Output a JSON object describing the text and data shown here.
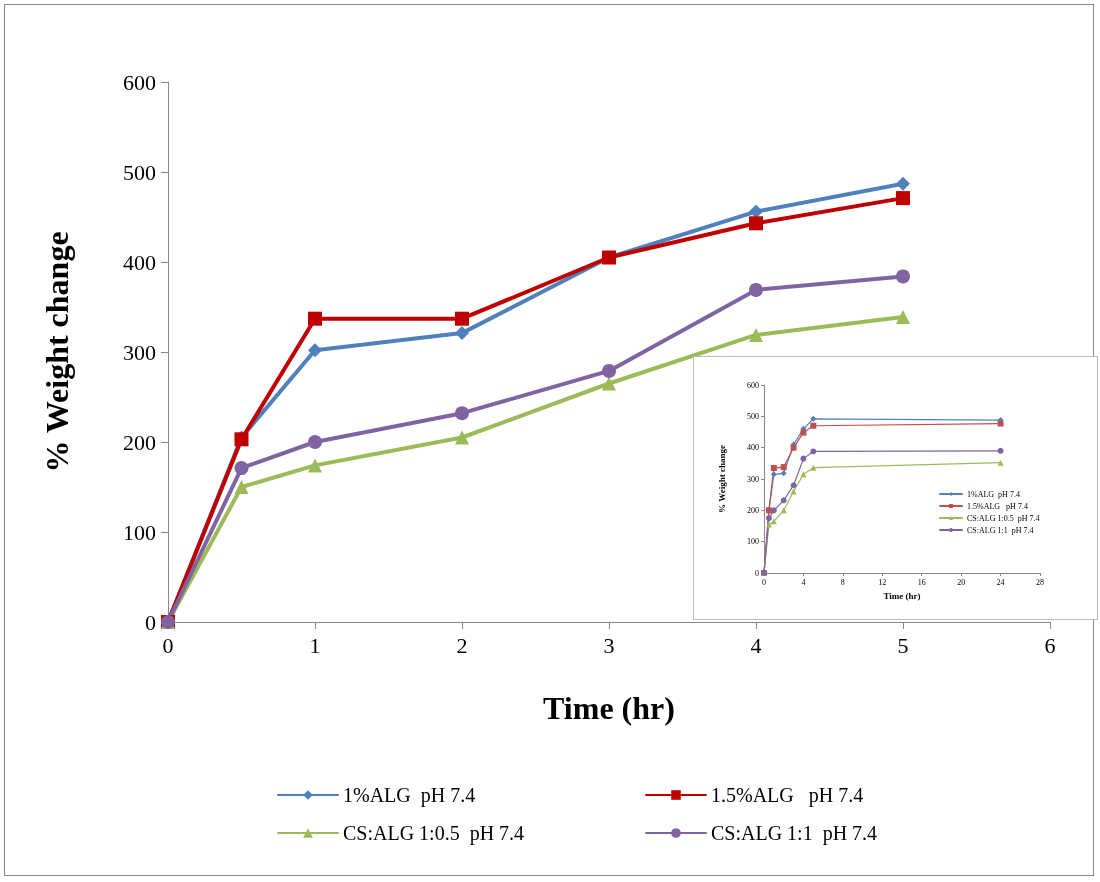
{
  "chart_data": [
    {
      "type": "line",
      "xlabel": "Time (hr)",
      "ylabel": "% Weight change",
      "x": [
        0,
        0.5,
        1,
        2,
        3,
        4,
        5
      ],
      "series": [
        {
          "name": "1%ALG  pH 7.4",
          "color": "#4f81bd",
          "marker": "diamond",
          "values": [
            0,
            205,
            302,
            321,
            405,
            456,
            487
          ]
        },
        {
          "name": "1.5%ALG   pH 7.4",
          "color": "#c00000",
          "marker": "square",
          "values": [
            0,
            203,
            337,
            337,
            405,
            443,
            471
          ]
        },
        {
          "name": "CS:ALG 1:0.5  pH 7.4",
          "color": "#9bbb59",
          "marker": "triangle",
          "values": [
            0,
            150,
            174,
            205,
            265,
            319,
            339
          ]
        },
        {
          "name": "CS:ALG 1:1  pH 7.4",
          "color": "#8064a2",
          "marker": "circle",
          "values": [
            0,
            171,
            200,
            232,
            279,
            369,
            384
          ]
        }
      ],
      "xlim": [
        0,
        6
      ],
      "xticks": [
        0,
        1,
        2,
        3,
        4,
        5,
        6
      ],
      "ylim": [
        0,
        600
      ],
      "yticks": [
        0,
        100,
        200,
        300,
        400,
        500,
        600
      ],
      "grid": false,
      "legend": "bottom"
    },
    {
      "type": "line",
      "xlabel": "Time (hr)",
      "ylabel": "% Weight change",
      "x": [
        0,
        0.5,
        1,
        2,
        3,
        4,
        5,
        24
      ],
      "series": [
        {
          "name": "1%ALG  pH 7.4",
          "color": "#4f81bd",
          "marker": "diamond",
          "values": [
            0,
            200,
            315,
            318,
            410,
            460,
            492,
            488
          ]
        },
        {
          "name": "1.5%ALG   pH 7.4",
          "color": "#c0504d",
          "marker": "square",
          "values": [
            0,
            200,
            335,
            338,
            400,
            448,
            470,
            477
          ]
        },
        {
          "name": "CS:ALG 1:0.5  pH 7.4",
          "color": "#9bbb59",
          "marker": "triangle",
          "values": [
            0,
            155,
            165,
            200,
            260,
            315,
            336,
            352
          ]
        },
        {
          "name": "CS:ALG 1:1  pH 7.4",
          "color": "#8064a2",
          "marker": "circle",
          "values": [
            0,
            175,
            200,
            232,
            280,
            365,
            388,
            390
          ]
        }
      ],
      "xlim": [
        0,
        28
      ],
      "xticks": [
        0,
        4,
        8,
        12,
        16,
        20,
        24,
        28
      ],
      "ylim": [
        0,
        600
      ],
      "yticks": [
        0,
        100,
        200,
        300,
        400,
        500,
        600
      ],
      "grid": false,
      "legend": "right"
    }
  ]
}
